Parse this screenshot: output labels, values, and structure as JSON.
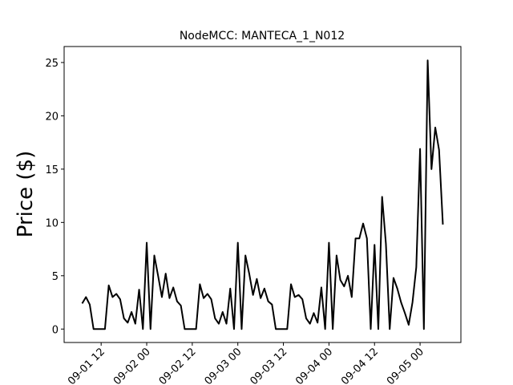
{
  "chart_data": {
    "type": "line",
    "title": "NodeMCC: MANTECA_1_N012",
    "y_label": "Price ($)",
    "x": [
      7,
      8,
      9,
      10,
      11,
      12,
      13,
      14,
      15,
      16,
      17,
      18,
      19,
      20,
      21,
      22,
      23,
      24,
      25,
      26,
      27,
      28,
      29,
      30,
      31,
      32,
      33,
      34,
      35,
      36,
      37,
      38,
      39,
      40,
      41,
      42,
      43,
      44,
      45,
      46,
      47,
      48,
      49,
      50,
      51,
      52,
      53,
      54,
      55,
      56,
      57,
      58,
      59,
      60,
      61,
      62,
      63,
      64,
      65,
      66,
      67,
      68,
      69,
      70,
      71,
      72,
      73,
      74,
      75,
      76,
      77,
      78,
      79,
      80,
      81,
      82,
      83,
      84,
      85,
      86,
      87,
      88,
      89,
      90,
      91,
      92,
      93,
      94,
      95,
      96,
      97,
      98,
      99,
      100,
      101,
      102
    ],
    "series": [
      {
        "color": "#000000",
        "values": [
          2.4,
          3.0,
          2.3,
          0,
          0,
          0,
          0,
          4.1,
          3.0,
          3.3,
          2.8,
          1.0,
          0.6,
          1.6,
          0.5,
          3.7,
          0,
          8.1,
          0,
          6.9,
          5.0,
          3.0,
          5.2,
          2.9,
          3.9,
          2.6,
          2.2,
          0,
          0,
          0,
          0,
          4.2,
          2.9,
          3.3,
          2.8,
          1.0,
          0.5,
          1.6,
          0.5,
          3.8,
          0,
          8.1,
          0,
          6.9,
          5.2,
          3.2,
          4.7,
          2.9,
          3.8,
          2.6,
          2.3,
          0,
          0,
          0,
          0,
          4.2,
          3.0,
          3.2,
          2.8,
          1.0,
          0.5,
          1.5,
          0.6,
          3.9,
          0,
          8.1,
          0,
          6.9,
          4.6,
          4.0,
          5.0,
          3.0,
          8.5,
          8.5,
          9.9,
          8.5,
          0,
          7.9,
          0,
          12.4,
          8.0,
          0,
          4.8,
          3.8,
          2.5,
          1.5,
          0.4,
          2.5,
          5.8,
          16.9,
          0,
          25.2,
          15.0,
          18.9,
          16.8,
          9.8
        ]
      }
    ],
    "xlim": [
      2.25,
      106.75
    ],
    "xticks": [
      {
        "value": 12,
        "label": "09-01 12"
      },
      {
        "value": 24,
        "label": "09-02 00"
      },
      {
        "value": 36,
        "label": "09-02 12"
      },
      {
        "value": 48,
        "label": "09-03 00"
      },
      {
        "value": 60,
        "label": "09-03 12"
      },
      {
        "value": 72,
        "label": "09-04 00"
      },
      {
        "value": 84,
        "label": "09-04 12"
      },
      {
        "value": 96,
        "label": "09-05 00"
      }
    ],
    "ylim": [
      -1.26,
      26.5
    ],
    "yticks": [
      0,
      5,
      10,
      15,
      20,
      25
    ]
  }
}
